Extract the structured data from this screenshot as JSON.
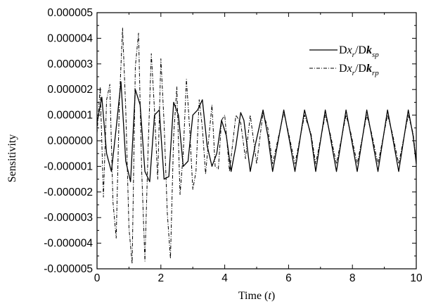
{
  "chart_data": {
    "type": "line",
    "xlabel": "Time (t)",
    "ylabel": "Sensitivity",
    "xlim": [
      0,
      10
    ],
    "ylim": [
      -5e-06,
      5e-06
    ],
    "xticks": [
      "0",
      "2",
      "4",
      "6",
      "8",
      "10"
    ],
    "yticks": [
      "0.000005",
      "0.000004",
      "0.000003",
      "0.000002",
      "0.000001",
      "0.000000",
      "-0.000001",
      "-0.000002",
      "-0.000003",
      "-0.000004",
      "-0.000005"
    ],
    "xtick_values": [
      0,
      2,
      4,
      6,
      8,
      10
    ],
    "ytick_values": [
      5e-06,
      4e-06,
      3e-06,
      2e-06,
      1e-06,
      0,
      -1e-06,
      -2e-06,
      -3e-06,
      -4e-06,
      -5e-06
    ],
    "grid": false,
    "legend_position": "top-right",
    "series": [
      {
        "name": "Dx_r/Dk_sp",
        "style": "solid",
        "color": "#000000",
        "x": [
          0,
          0.15,
          0.3,
          0.45,
          0.6,
          0.75,
          0.9,
          1.05,
          1.2,
          1.35,
          1.5,
          1.65,
          1.8,
          1.95,
          2.1,
          2.25,
          2.4,
          2.55,
          2.7,
          2.85,
          3.0,
          3.15,
          3.3,
          3.45,
          3.6,
          3.75,
          3.9,
          4.05,
          4.2,
          4.35,
          4.5,
          4.6,
          4.8,
          4.95,
          5.2,
          5.35,
          5.5,
          5.85,
          6.0,
          6.2,
          6.5,
          6.7,
          6.85,
          7.15,
          7.3,
          7.5,
          7.8,
          7.95,
          8.15,
          8.45,
          8.6,
          8.8,
          9.1,
          9.25,
          9.45,
          9.75,
          9.9,
          10.0
        ],
        "y": [
          7e-07,
          1.7e-06,
          -5e-07,
          -1.2e-06,
          5e-07,
          2.3e-06,
          -8e-07,
          -1.6e-06,
          2e-06,
          1.4e-06,
          -1.2e-06,
          -1.6e-06,
          1e-06,
          1.2e-06,
          -1.5e-06,
          -1.4e-06,
          1.5e-06,
          1e-06,
          -1e-06,
          -8e-07,
          1e-06,
          1.2e-06,
          1.6e-06,
          -2e-07,
          -1e-06,
          -5e-07,
          8e-07,
          2e-07,
          -1.2e-06,
          -2e-07,
          1.1e-06,
          8e-07,
          -1.2e-06,
          -2e-07,
          1.2e-06,
          2e-07,
          -1.2e-06,
          1.2e-06,
          2e-07,
          -1.2e-06,
          1.2e-06,
          2e-07,
          -1.2e-06,
          1.2e-06,
          2e-07,
          -1.2e-06,
          1.2e-06,
          2e-07,
          -1.2e-06,
          1.2e-06,
          2e-07,
          -1.2e-06,
          1.2e-06,
          2e-07,
          -1.2e-06,
          1.2e-06,
          2e-07,
          -9e-07
        ]
      },
      {
        "name": "Dx_r/Dk_rp",
        "style": "dash-dot",
        "color": "#000000",
        "x": [
          0,
          0.1,
          0.2,
          0.3,
          0.4,
          0.5,
          0.6,
          0.7,
          0.8,
          0.9,
          1.0,
          1.1,
          1.2,
          1.3,
          1.4,
          1.5,
          1.6,
          1.7,
          1.8,
          1.9,
          2.0,
          2.1,
          2.2,
          2.3,
          2.4,
          2.5,
          2.6,
          2.7,
          2.8,
          2.9,
          3.0,
          3.1,
          3.2,
          3.3,
          3.4,
          3.5,
          3.6,
          3.7,
          3.8,
          3.9,
          4.0,
          4.15,
          4.35,
          4.5,
          4.65,
          4.8,
          5.0,
          5.2,
          5.35,
          5.5,
          5.85,
          6.0,
          6.2,
          6.5,
          6.7,
          6.85,
          7.15,
          7.3,
          7.5,
          7.8,
          7.95,
          8.15,
          8.45,
          8.6,
          8.8,
          9.1,
          9.25,
          9.45,
          9.75,
          9.9,
          10.0
        ],
        "y": [
          3e-07,
          2.1e-06,
          -2.2e-06,
          1.6e-06,
          2.2e-06,
          -2.4e-06,
          -3.8e-06,
          1.5e-06,
          4.4e-06,
          1.2e-06,
          -3.4e-06,
          -4.8e-06,
          2.9e-06,
          4.2e-06,
          -1.2e-06,
          -4.7e-06,
          -3e-07,
          3.4e-06,
          1.2e-06,
          -1.5e-06,
          3.2e-06,
          7e-07,
          -2.8e-06,
          -4.6e-06,
          2e-07,
          2.1e-06,
          -2.1e-06,
          -5e-07,
          2.4e-06,
          5e-07,
          -1.9e-06,
          -1.2e-06,
          1.6e-06,
          5e-07,
          -1.3e-06,
          1e-07,
          1.4e-06,
          -1e-06,
          -1.1e-06,
          8e-07,
          1e-06,
          -1.2e-06,
          1e-06,
          7e-07,
          -7e-07,
          1e-06,
          -9e-07,
          1.1e-06,
          5e-07,
          -9e-07,
          1.1e-06,
          3e-07,
          -9e-07,
          1e-06,
          3e-07,
          -9e-07,
          1e-06,
          3e-07,
          -9e-07,
          1e-06,
          3e-07,
          -9e-07,
          1e-06,
          3e-07,
          -9e-07,
          1e-06,
          3e-07,
          -9e-07,
          1e-06,
          3e-07,
          -8e-07
        ]
      }
    ]
  },
  "legend": [
    {
      "main1": "D",
      "var1": "x",
      "sub1": "r",
      "slash": "/D",
      "var2": "k",
      "sub2": "sp"
    },
    {
      "main1": "D",
      "var1": "x",
      "sub1": "r",
      "slash": "/D",
      "var2": "k",
      "sub2": "rp"
    }
  ],
  "axis_titles": {
    "x_main": "Time",
    "x_var": "t",
    "y": "Sensitivity"
  }
}
